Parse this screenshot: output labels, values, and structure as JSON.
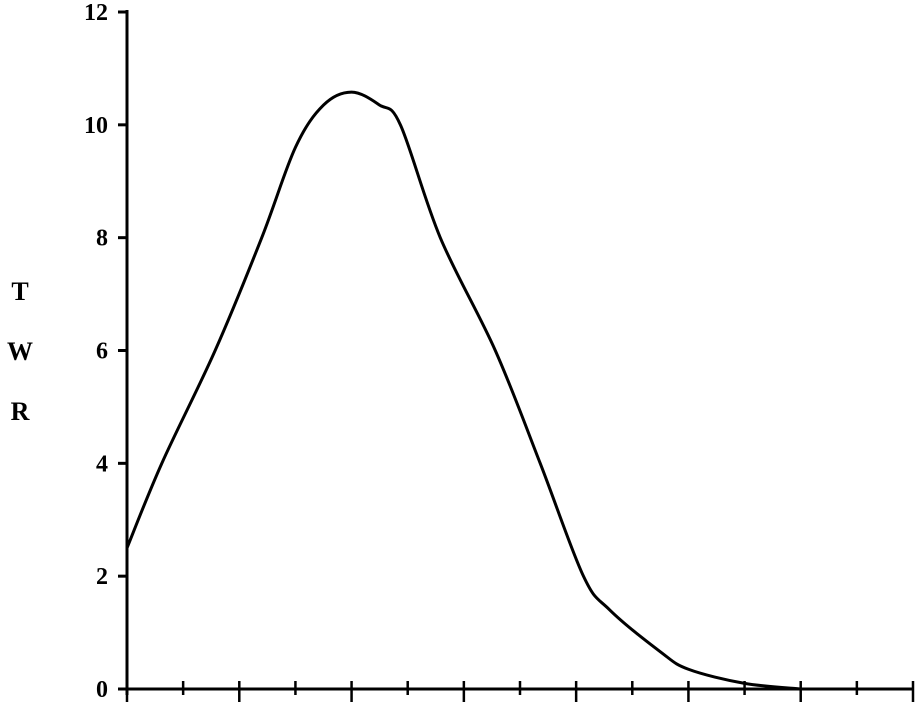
{
  "chart_data": {
    "type": "line",
    "title": "",
    "xlabel": "",
    "ylabel": "TWR",
    "xlim": [
      0,
      14
    ],
    "ylim": [
      0,
      12
    ],
    "yticks": [
      0,
      2,
      4,
      6,
      8,
      10,
      12
    ],
    "ytick_labels": [
      "0",
      "2",
      "4",
      "6",
      "8",
      "10",
      "12"
    ],
    "xticks_count": 15,
    "grid": false,
    "line_color": "#000000",
    "series": [
      {
        "x": [
          0,
          0.62,
          1.57,
          2.4,
          3.0,
          3.5,
          4.0,
          4.5,
          4.87,
          5.58,
          6.56,
          7.36,
          8.13,
          8.6,
          9.5,
          10.0,
          11.0,
          12.0
        ],
        "y": [
          2.5,
          4.0,
          6.0,
          8.0,
          9.6,
          10.35,
          10.58,
          10.35,
          10.0,
          8.0,
          6.0,
          4.0,
          2.0,
          1.4,
          0.66,
          0.35,
          0.1,
          0.0
        ]
      }
    ]
  }
}
